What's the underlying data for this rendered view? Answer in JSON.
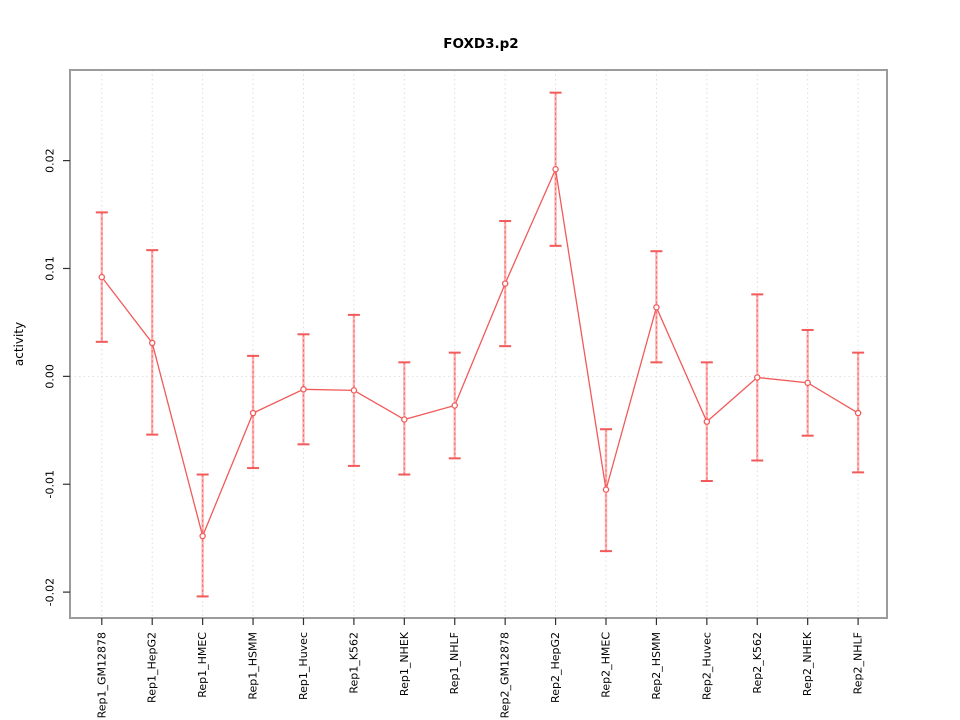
{
  "title": "FOXD3.p2",
  "chart_data": {
    "type": "line",
    "title": "FOXD3.p2",
    "xlabel": "",
    "ylabel": "activity",
    "categories": [
      "Rep1_GM12878",
      "Rep1_HepG2",
      "Rep1_HMEC",
      "Rep1_HSMM",
      "Rep1_Huvec",
      "Rep1_K562",
      "Rep1_NHEK",
      "Rep1_NHLF",
      "Rep2_GM12878",
      "Rep2_HepG2",
      "Rep2_HMEC",
      "Rep2_HSMM",
      "Rep2_Huvec",
      "Rep2_K562",
      "Rep2_NHEK",
      "Rep2_NHLF"
    ],
    "series": [
      {
        "name": "activity",
        "values": [
          0.0092,
          0.0031,
          -0.0148,
          -0.0034,
          -0.0012,
          -0.0013,
          -0.004,
          -0.0027,
          0.0086,
          0.0192,
          -0.0105,
          0.0064,
          -0.0042,
          -0.0001,
          -0.0006,
          -0.0034
        ],
        "error_upper": [
          0.0152,
          0.0117,
          -0.0091,
          0.0019,
          0.0039,
          0.0057,
          0.0013,
          0.0022,
          0.0144,
          0.0263,
          -0.0049,
          0.0116,
          0.0013,
          0.0076,
          0.0043,
          0.0022
        ],
        "error_lower": [
          0.0032,
          -0.0054,
          -0.0204,
          -0.0085,
          -0.0063,
          -0.0083,
          -0.0091,
          -0.0076,
          0.0028,
          0.0121,
          -0.0162,
          0.0013,
          -0.0097,
          -0.0078,
          -0.0055,
          -0.0089
        ]
      }
    ],
    "yticks": [
      {
        "label": "0.02",
        "value": 0.02
      },
      {
        "label": "0.01",
        "value": 0.01
      },
      {
        "label": "0.00",
        "value": 0.0
      },
      {
        "label": "-0.01",
        "value": -0.01
      },
      {
        "label": "-0.02",
        "value": -0.02
      }
    ],
    "ylim": [
      -0.0224,
      0.0284
    ],
    "grid": "dotted vertical gridline at every category; dotted horizontal gridline at y=0",
    "legend_position": "none",
    "marker": "open-circle",
    "colors": {
      "line": "#F25A5A",
      "error_stem": "#FFB3B3",
      "error_dash": "#F25A5A",
      "grid": "#DDDDDD",
      "box": "#9B9B9B",
      "tick": "#303030",
      "text": "#000000",
      "background": "#FFFFFF"
    }
  }
}
